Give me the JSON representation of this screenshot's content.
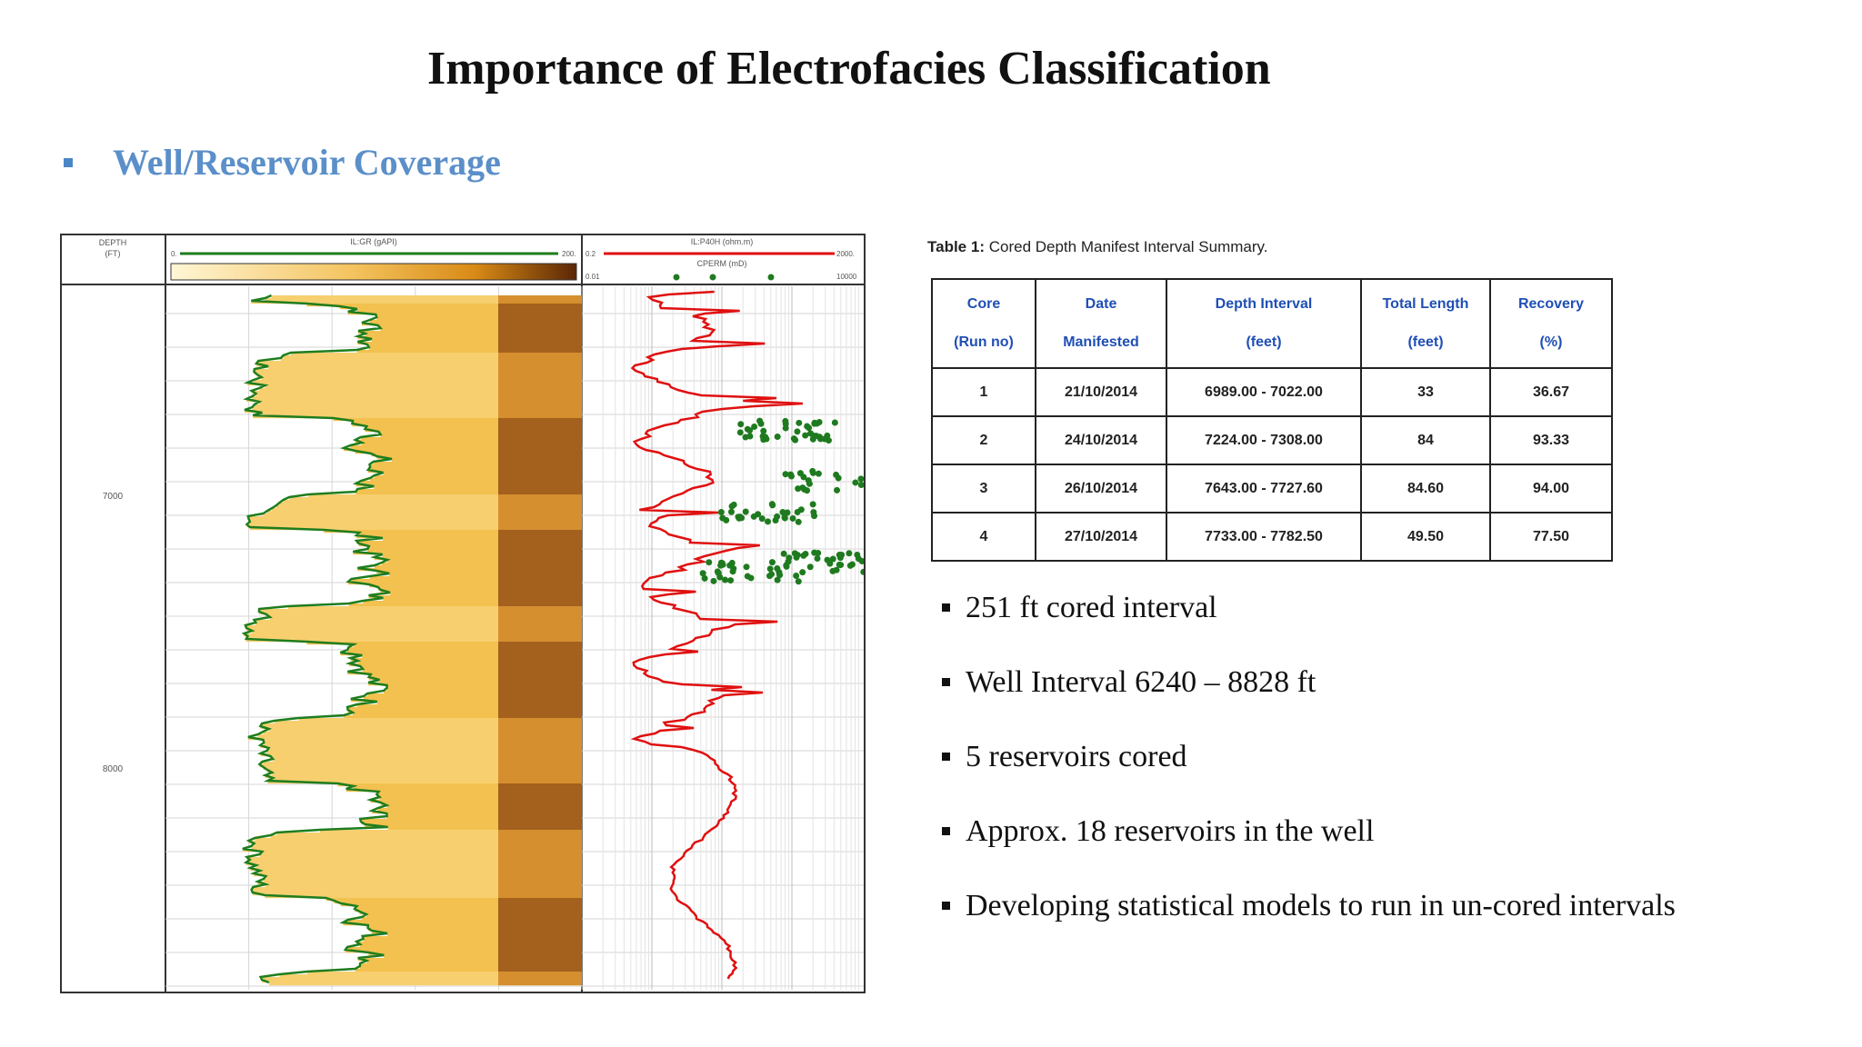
{
  "slide": {
    "title": "Importance of Electrofacies Classification",
    "section_bullet": "Well/Reservoir Coverage"
  },
  "log": {
    "depth_header": "DEPTH",
    "depth_unit": "(FT)",
    "track1_curve": "IL:GR (gAPI)",
    "track1_min": "0.",
    "track1_max": "200.",
    "track2_curve": "IL:P40H (ohm.m)",
    "track2_min": "0.2",
    "track2_max": "2000.",
    "track2_curve2": "CPERM (mD)",
    "track2_min2": "0.01",
    "track2_max2": "10000",
    "depth_labels": [
      "7000",
      "8000"
    ],
    "colors": {
      "gr": "#1e7d1e",
      "resistivity": "#e01010",
      "perm_points": "#1f7a1f"
    }
  },
  "table": {
    "caption_bold": "Table 1:",
    "caption_text": "Cored Depth Manifest Interval Summary.",
    "headers": [
      [
        "Core",
        "(Run no)"
      ],
      [
        "Date",
        "Manifested"
      ],
      [
        "Depth Interval",
        "(feet)"
      ],
      [
        "Total Length",
        "(feet)"
      ],
      [
        "Recovery",
        "(%)"
      ]
    ],
    "rows": [
      [
        "1",
        "21/10/2014",
        "6989.00 - 7022.00",
        "33",
        "36.67"
      ],
      [
        "2",
        "24/10/2014",
        "7224.00 - 7308.00",
        "84",
        "93.33"
      ],
      [
        "3",
        "26/10/2014",
        "7643.00 - 7727.60",
        "84.60",
        "94.00"
      ],
      [
        "4",
        "27/10/2014",
        "7733.00 - 7782.50",
        "49.50",
        "77.50"
      ]
    ]
  },
  "points": [
    "251 ft cored interval",
    "Well Interval 6240 – 8828 ft",
    "5 reservoirs cored",
    "Approx. 18 reservoirs in the well",
    "Developing statistical models to run in un-cored intervals"
  ]
}
